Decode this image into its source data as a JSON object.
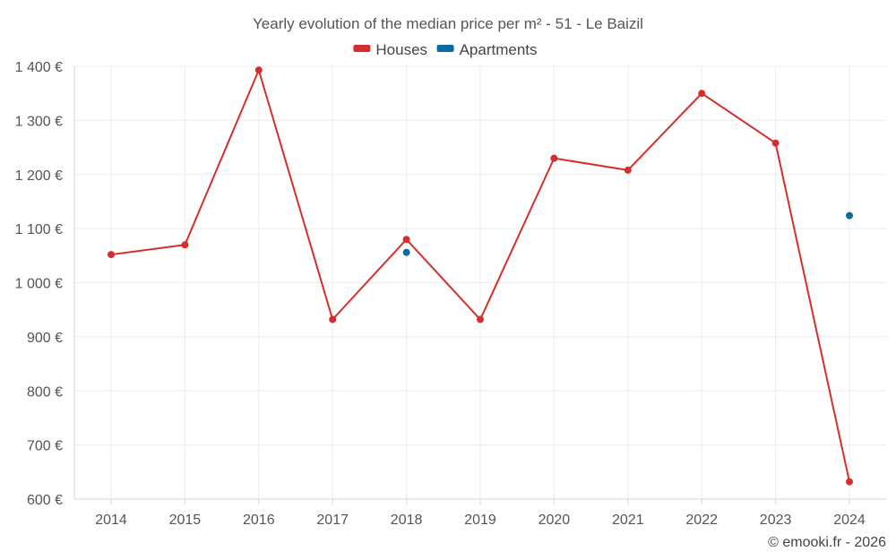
{
  "chart_data": {
    "type": "line",
    "title": "Yearly evolution of the median price per m² - 51 - Le Baizil",
    "categories": [
      "2014",
      "2015",
      "2016",
      "2017",
      "2018",
      "2019",
      "2020",
      "2021",
      "2022",
      "2023",
      "2024"
    ],
    "ylim": [
      600,
      1400
    ],
    "yticks": [
      600,
      700,
      800,
      900,
      1000,
      1100,
      1200,
      1300,
      1400
    ],
    "ytick_labels": [
      "600 €",
      "700 €",
      "800 €",
      "900 €",
      "1 000 €",
      "1 100 €",
      "1 200 €",
      "1 300 €",
      "1 400 €"
    ],
    "grid": true,
    "legend_position": "top-center",
    "series": [
      {
        "name": "Houses",
        "color": "#d32f2f",
        "values": [
          1052,
          1070,
          1393,
          932,
          1080,
          932,
          1230,
          1208,
          1350,
          1258,
          632
        ]
      },
      {
        "name": "Apartments",
        "color": "#0b6aa2",
        "values": [
          null,
          null,
          null,
          null,
          1056,
          null,
          null,
          null,
          null,
          null,
          1124
        ]
      }
    ]
  },
  "credit": "© emooki.fr - 2026"
}
